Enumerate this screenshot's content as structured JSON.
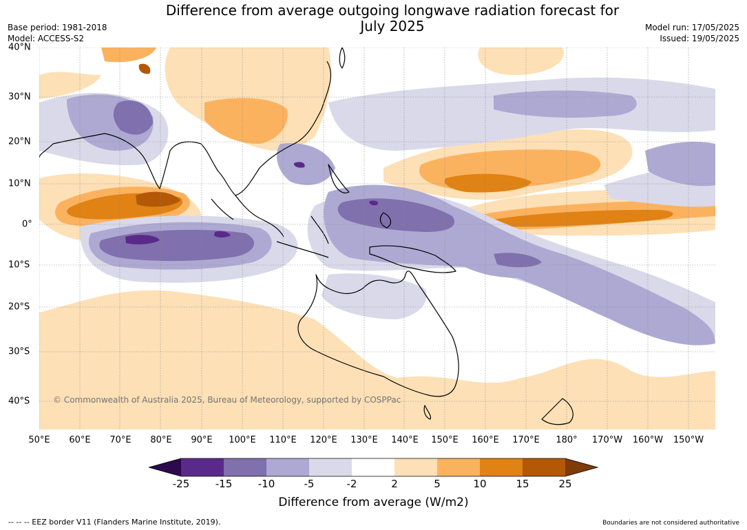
{
  "title_line1": "Difference from average outgoing longwave radiation forecast for",
  "title_line2": "July 2025",
  "base_period": "Base period: 1981-2018",
  "model": "Model: ACCESS-S2",
  "model_run": "Model run: 17/05/2025",
  "issued": "Issued: 19/05/2025",
  "lon_ticks": [
    "50°E",
    "60°E",
    "70°E",
    "80°E",
    "90°E",
    "100°E",
    "110°E",
    "120°E",
    "130°E",
    "140°E",
    "150°E",
    "160°E",
    "170°E",
    "180°",
    "170°W",
    "160°W",
    "150°W"
  ],
  "lat_ticks": [
    "40°N",
    "30°N",
    "20°N",
    "10°N",
    "0°",
    "10°S",
    "20°S",
    "30°S",
    "40°S"
  ],
  "copyright": "© Commonwealth of Australia 2025, Bureau of Meteorology, supported by COSPPac",
  "colorbar": {
    "title": "Difference from average (W/m2)",
    "labels": [
      "-25",
      "-15",
      "-10",
      "-5",
      "-2",
      "2",
      "5",
      "10",
      "15",
      "25"
    ],
    "colors": {
      "lt_m25": "#2d0a4e",
      "m25_m15": "#5a2a8a",
      "m15_m10": "#8070ad",
      "m10_m5": "#aea9d2",
      "m5_m2": "#d9d9ea",
      "m2_p2": "#ffffff",
      "p2_p5": "#fde0b6",
      "p5_p10": "#fbb25f",
      "p10_p15": "#e08214",
      "p15_p25": "#b35806",
      "gt_p25": "#7f3b08"
    }
  },
  "eez_note": "--  --  -- EEZ border V11 (Flanders Marine Institute, 2019).",
  "boundaries_note": "Boundaries are not considered authoritative"
}
